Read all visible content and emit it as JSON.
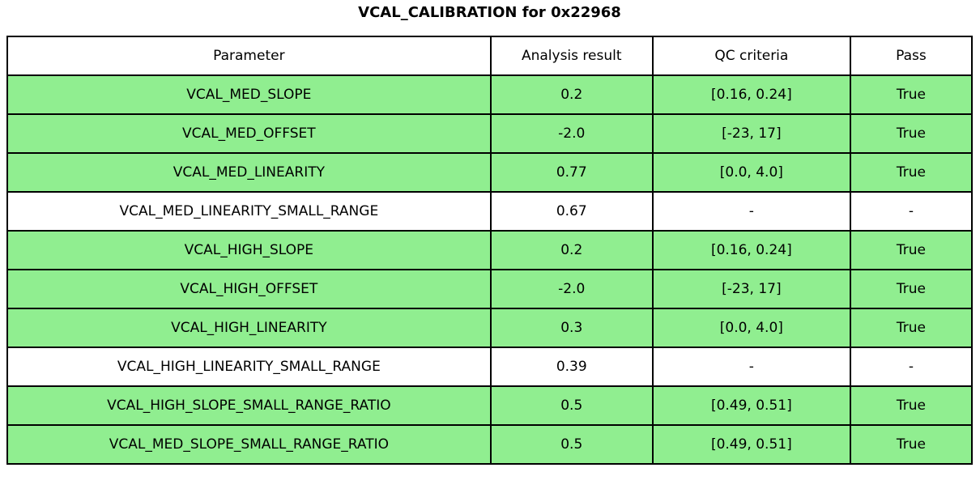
{
  "chart_data": {
    "type": "table",
    "title": "VCAL_CALIBRATION for 0x22968",
    "columns": [
      "Parameter",
      "Analysis result",
      "QC criteria",
      "Pass"
    ],
    "rows": [
      {
        "parameter": "VCAL_MED_SLOPE",
        "analysis_result": "0.2",
        "qc_criteria": "[0.16, 0.24]",
        "pass": "True",
        "highlighted": true
      },
      {
        "parameter": "VCAL_MED_OFFSET",
        "analysis_result": "-2.0",
        "qc_criteria": "[-23, 17]",
        "pass": "True",
        "highlighted": true
      },
      {
        "parameter": "VCAL_MED_LINEARITY",
        "analysis_result": "0.77",
        "qc_criteria": "[0.0, 4.0]",
        "pass": "True",
        "highlighted": true
      },
      {
        "parameter": "VCAL_MED_LINEARITY_SMALL_RANGE",
        "analysis_result": "0.67",
        "qc_criteria": "-",
        "pass": "-",
        "highlighted": false
      },
      {
        "parameter": "VCAL_HIGH_SLOPE",
        "analysis_result": "0.2",
        "qc_criteria": "[0.16, 0.24]",
        "pass": "True",
        "highlighted": true
      },
      {
        "parameter": "VCAL_HIGH_OFFSET",
        "analysis_result": "-2.0",
        "qc_criteria": "[-23, 17]",
        "pass": "True",
        "highlighted": true
      },
      {
        "parameter": "VCAL_HIGH_LINEARITY",
        "analysis_result": "0.3",
        "qc_criteria": "[0.0, 4.0]",
        "pass": "True",
        "highlighted": true
      },
      {
        "parameter": "VCAL_HIGH_LINEARITY_SMALL_RANGE",
        "analysis_result": "0.39",
        "qc_criteria": "-",
        "pass": "-",
        "highlighted": false
      },
      {
        "parameter": "VCAL_HIGH_SLOPE_SMALL_RANGE_RATIO",
        "analysis_result": "0.5",
        "qc_criteria": "[0.49, 0.51]",
        "pass": "True",
        "highlighted": true
      },
      {
        "parameter": "VCAL_MED_SLOPE_SMALL_RANGE_RATIO",
        "analysis_result": "0.5",
        "qc_criteria": "[0.49, 0.51]",
        "pass": "True",
        "highlighted": true
      }
    ],
    "layout": {
      "legend": "none",
      "grid": "full-cell-borders",
      "header_row": true
    }
  },
  "colors": {
    "pass_row_bg": "#90ee90",
    "neutral_row_bg": "#ffffff",
    "header_bg": "#ffffff",
    "border": "#000000",
    "text": "#000000"
  }
}
